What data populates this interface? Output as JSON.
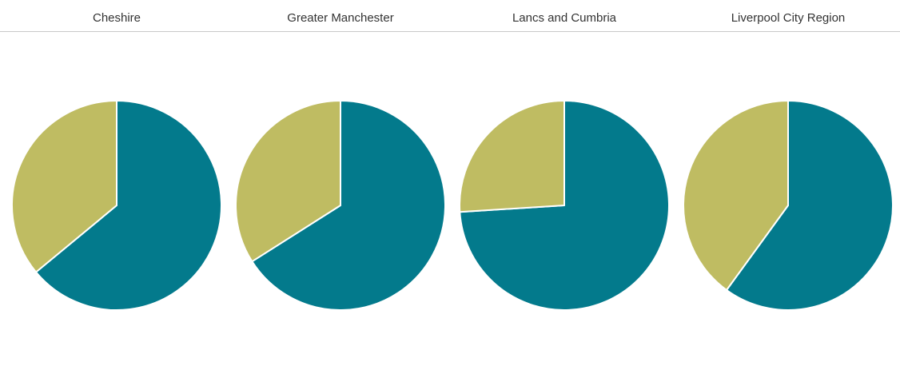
{
  "chart_data": {
    "type": "pie",
    "colors": {
      "series_a": "#037a8c",
      "series_b": "#bfbc62",
      "separator": "#ffffff"
    },
    "panels": [
      {
        "title": "Cheshire",
        "values": [
          64,
          36
        ]
      },
      {
        "title": "Greater Manchester",
        "values": [
          66,
          34
        ]
      },
      {
        "title": "Lancs and Cumbria",
        "values": [
          74,
          26
        ]
      },
      {
        "title": "Liverpool City Region",
        "values": [
          60,
          40
        ]
      }
    ]
  }
}
